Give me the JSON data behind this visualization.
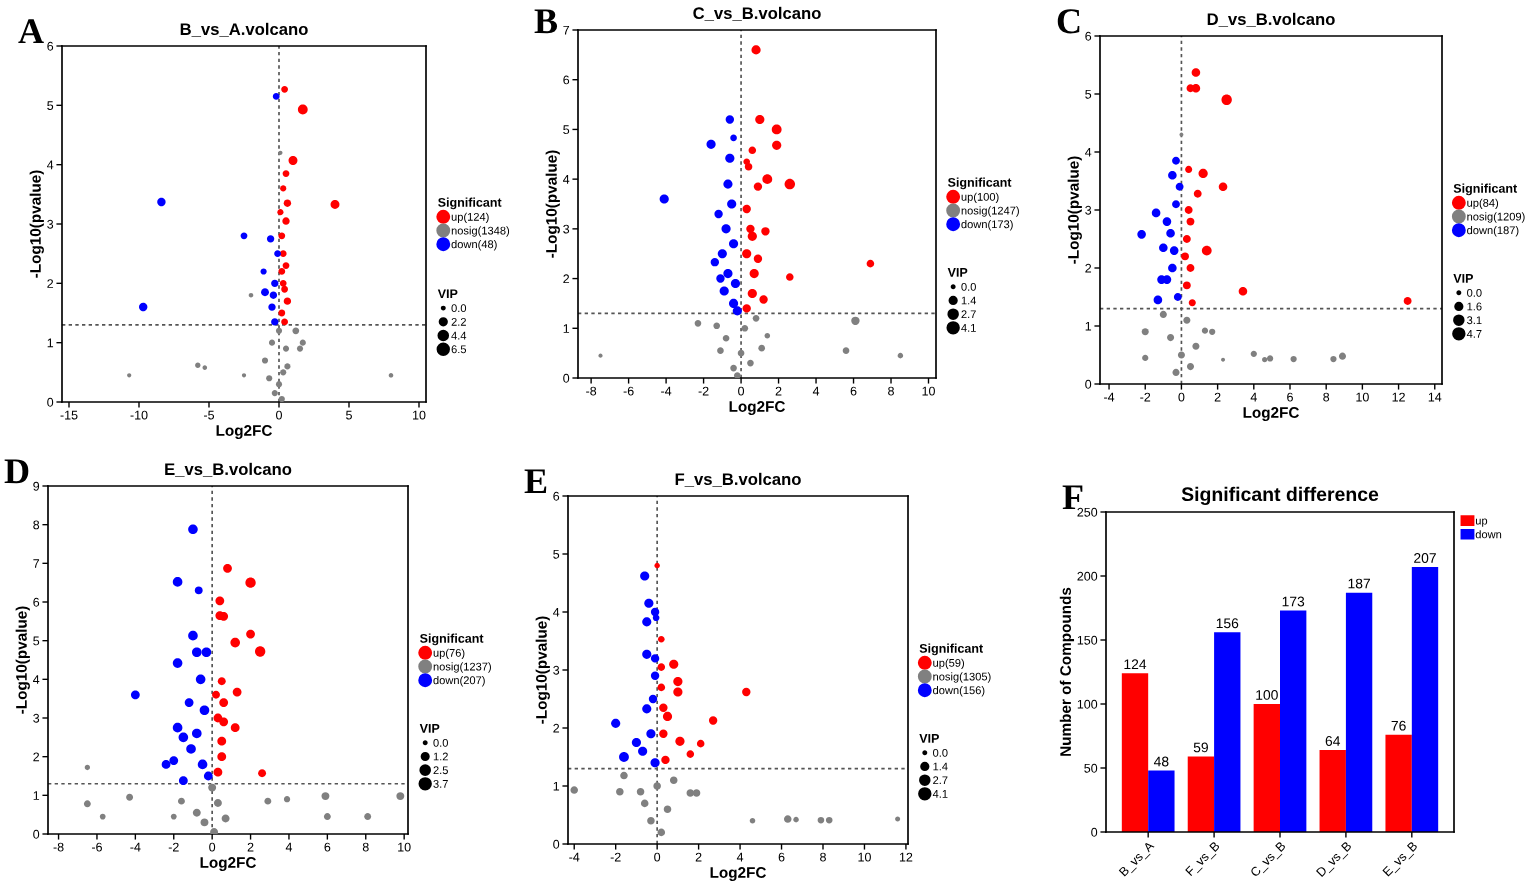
{
  "chart_data": [
    {
      "type": "bubble",
      "title": "B_vs_A.volcano",
      "xlabel": "Log2FC",
      "ylabel": "-Log10(pvalue)",
      "legend_title": "Significant",
      "annotations": [
        "A",
        "VIP"
      ],
      "legend": "right",
      "xlim": [
        -15.5,
        10.5
      ],
      "xticks": [
        -15,
        -10,
        -5,
        0,
        5,
        10
      ],
      "ylim": [
        0,
        6
      ],
      "yticks": [
        0,
        1,
        2,
        3,
        4,
        5,
        6
      ],
      "ref_lines": [
        {
          "axis": "y",
          "value": 1.3,
          "line_style": "dotted"
        },
        {
          "axis": "x",
          "value": 0,
          "line_style": "dotted"
        }
      ],
      "size_legend": [
        {
          "value": 0,
          "label": "0.0"
        },
        2.2,
        4.4,
        6.5
      ],
      "series": [
        {
          "name": "up(124)",
          "color": "#ff0000",
          "x": [
            0.4,
            1.7,
            1.0,
            0.5,
            4.0,
            0.6,
            0.3,
            0.5,
            0.2,
            0.3,
            0.5,
            0.3,
            0.6,
            0.2,
            0.4,
            0.1,
            0.2,
            0.4
          ],
          "values": [
            5.27,
            4.93,
            4.07,
            3.85,
            3.33,
            3.35,
            3.6,
            3.05,
            2.8,
            2.5,
            2.3,
            2.0,
            1.7,
            1.5,
            1.35,
            3.2,
            2.2,
            1.9
          ],
          "sizes": [
            2.5,
            5.5,
            4.5,
            2.5,
            4.5,
            3,
            2,
            3,
            2.5,
            2.5,
            2.5,
            2.5,
            3,
            2.5,
            2.5,
            2,
            2.5,
            2.5
          ]
        },
        {
          "name": "nosig(1348)",
          "color": "#808080",
          "x": [
            -10.7,
            -5.8,
            -5.3,
            -2.5,
            8,
            -2,
            0.1,
            0,
            -0.5,
            0.5,
            1.5,
            -1,
            0.3,
            0,
            -0.3,
            1.2,
            0.6,
            -0.7,
            0.2,
            1.7
          ],
          "values": [
            0.45,
            0.62,
            0.58,
            0.45,
            0.45,
            1.8,
            4.2,
            1.2,
            1.0,
            0.9,
            0.9,
            0.7,
            0.5,
            0.3,
            0.15,
            1.2,
            0.6,
            0.4,
            0.05,
            1.0
          ],
          "sizes": [
            0.8,
            1.5,
            1,
            0.8,
            1,
            1,
            0.8,
            2,
            2,
            2,
            2,
            2,
            2,
            2,
            2,
            2.5,
            2,
            2,
            2,
            2
          ]
        },
        {
          "name": "down(48)",
          "color": "#0000ff",
          "x": [
            -0.2,
            -8.4,
            -2.5,
            -0.6,
            -9.7,
            -1.1,
            -1.0,
            -0.3,
            -0.5,
            -0.3,
            -0.1,
            -0.4
          ],
          "values": [
            5.15,
            3.37,
            2.8,
            2.75,
            1.6,
            2.2,
            1.85,
            2.0,
            1.6,
            1.35,
            2.5,
            1.8
          ],
          "sizes": [
            2.5,
            4,
            2.5,
            3,
            4,
            2,
            3.5,
            3,
            3,
            3,
            2.5,
            3
          ]
        }
      ]
    },
    {
      "type": "bubble",
      "title": "C_vs_B.volcano",
      "xlabel": "Log2FC",
      "ylabel": "-Log10(pvalue)",
      "legend_title": "Significant",
      "annotations": [
        "B",
        "VIP"
      ],
      "legend": "right",
      "xlim": [
        -8.7,
        10.4
      ],
      "xticks": [
        -8,
        -6,
        -4,
        -2,
        0,
        2,
        4,
        6,
        8,
        10
      ],
      "ylim": [
        0,
        7
      ],
      "yticks": [
        0,
        1,
        2,
        3,
        4,
        5,
        6,
        7
      ],
      "ref_lines": [
        {
          "axis": "y",
          "value": 1.3,
          "line_style": "dotted"
        },
        {
          "axis": "x",
          "value": 0,
          "line_style": "dotted"
        }
      ],
      "size_legend": [
        {
          "value": 0,
          "label": "0.0"
        },
        1.4,
        2.7,
        4.1
      ],
      "series": [
        {
          "name": "up(100)",
          "color": "#ff0000",
          "x": [
            0.8,
            1.0,
            1.9,
            1.9,
            2.6,
            1.4,
            0.6,
            0.4,
            0.3,
            0.9,
            0.3,
            0.5,
            1.3,
            0.6,
            6.9,
            2.6,
            1.2,
            0.7,
            0.3,
            0.6,
            0.3,
            0.9
          ],
          "values": [
            6.6,
            5.2,
            5.0,
            4.68,
            3.9,
            4.0,
            4.58,
            4.25,
            4.35,
            3.85,
            3.4,
            3.0,
            2.95,
            2.85,
            2.3,
            2.03,
            1.58,
            2.1,
            2.5,
            1.7,
            1.4,
            2.4
          ],
          "sizes": [
            3,
            3,
            3.5,
            3,
            4,
            3.5,
            2,
            2,
            1.5,
            2.5,
            2.5,
            2.5,
            2.5,
            3,
            2,
            2,
            2.5,
            3,
            3,
            3,
            2.5,
            2.5
          ]
        },
        {
          "name": "nosig(1247)",
          "color": "#808080",
          "x": [
            -7.5,
            -2.3,
            -1.3,
            8.5,
            5.6,
            6.1,
            1.4,
            0.8,
            -0.8,
            0,
            0.5,
            -0.4,
            1.1,
            -1.1,
            0.2,
            -0.2
          ],
          "values": [
            0.45,
            1.1,
            1.05,
            0.45,
            0.55,
            1.15,
            0.85,
            1.2,
            0.8,
            0.5,
            0.3,
            0.2,
            0.6,
            0.55,
            1.0,
            0.05
          ],
          "sizes": [
            0.5,
            1.5,
            1.5,
            1,
            1.5,
            2.5,
            1,
            1.5,
            1.5,
            1.5,
            1.5,
            1.5,
            1.5,
            1.5,
            1.5,
            1.5
          ]
        },
        {
          "name": "down(173)",
          "color": "#0000ff",
          "x": [
            -0.6,
            -1.6,
            -0.4,
            -0.6,
            -4.1,
            -0.7,
            -0.5,
            -1.2,
            -0.8,
            -1.4,
            -0.4,
            -1.0,
            -0.7,
            -0.3,
            -0.9,
            -0.4,
            -0.2,
            -1.1
          ],
          "values": [
            5.2,
            4.7,
            4.83,
            4.42,
            3.6,
            3.9,
            3.5,
            3.3,
            3.0,
            2.33,
            2.7,
            2.5,
            2.1,
            1.9,
            1.75,
            1.5,
            1.35,
            2.0
          ],
          "sizes": [
            2.5,
            3,
            1.5,
            3,
            3,
            3,
            3,
            2.5,
            3,
            2.5,
            3,
            3,
            3,
            3,
            3,
            3,
            3,
            2.5
          ]
        }
      ]
    },
    {
      "type": "bubble",
      "title": "D_vs_B.volcano",
      "xlabel": "Log2FC",
      "ylabel": "-Log10(pvalue)",
      "legend_title": "Significant",
      "annotations": [
        "C",
        "VIP"
      ],
      "legend": "right",
      "xlim": [
        -4.5,
        14.4
      ],
      "xticks": [
        -4,
        -2,
        0,
        2,
        4,
        6,
        8,
        10,
        12,
        14
      ],
      "ylim": [
        0,
        6
      ],
      "yticks": [
        0,
        1,
        2,
        3,
        4,
        5,
        6
      ],
      "ref_lines": [
        {
          "axis": "y",
          "value": 1.3,
          "line_style": "dotted"
        },
        {
          "axis": "x",
          "value": 0,
          "line_style": "dotted"
        }
      ],
      "size_legend": [
        {
          "value": 0,
          "label": "0.0"
        },
        1.6,
        3.1,
        4.7
      ],
      "series": [
        {
          "name": "up(84)",
          "color": "#ff0000",
          "x": [
            0.8,
            0.5,
            0.8,
            2.5,
            1.2,
            2.3,
            0.9,
            0.4,
            0.4,
            1.4,
            3.4,
            12.5,
            0.3,
            0.5,
            0.3,
            0.6,
            0.2,
            0.5
          ],
          "values": [
            5.37,
            5.1,
            5.1,
            4.9,
            3.63,
            3.4,
            3.28,
            3.7,
            3.0,
            2.3,
            1.6,
            1.43,
            2.5,
            2.0,
            1.7,
            1.4,
            2.2,
            2.8
          ],
          "sizes": [
            3,
            2.5,
            3,
            4.5,
            3.5,
            3,
            2.5,
            2,
            2.5,
            4,
            3,
            2.5,
            2.5,
            2.5,
            2.5,
            2,
            2.5,
            2.5
          ]
        },
        {
          "name": "nosig(1209)",
          "color": "#808080",
          "x": [
            0,
            -2.0,
            -2.0,
            2.3,
            4.0,
            4.6,
            4.9,
            6.2,
            8.4,
            8.9,
            1.3,
            1.7,
            -0.6,
            0.3,
            0,
            0.5,
            -0.3,
            0.8,
            -1
          ],
          "values": [
            4.3,
            0.9,
            0.45,
            0.42,
            0.52,
            0.42,
            0.44,
            0.43,
            0.43,
            0.48,
            0.92,
            0.9,
            0.8,
            1.1,
            0.5,
            0.3,
            0.2,
            0.65,
            1.2
          ],
          "sizes": [
            0.5,
            2,
            1.5,
            0.5,
            1.5,
            1,
            1.5,
            1.5,
            1.5,
            2,
            1.5,
            1.5,
            2,
            2,
            2,
            2,
            2,
            2,
            2
          ]
        },
        {
          "name": "down(187)",
          "color": "#0000ff",
          "x": [
            -0.3,
            -0.5,
            -2.2,
            -1.4,
            -0.8,
            -1.0,
            -0.3,
            -0.5,
            -0.8,
            -1.3,
            -0.2,
            -0.6,
            -0.4,
            -1.1,
            -0.1
          ],
          "values": [
            3.85,
            3.6,
            2.58,
            2.95,
            2.8,
            2.35,
            3.1,
            2.0,
            1.8,
            1.45,
            1.5,
            2.6,
            2.3,
            1.8,
            3.4
          ],
          "sizes": [
            2.5,
            3,
            3,
            3,
            3,
            3,
            2.5,
            3,
            3,
            3,
            2.5,
            3,
            3,
            3,
            2.5
          ]
        }
      ]
    },
    {
      "type": "bubble",
      "title": "E_vs_B.volcano",
      "xlabel": "Log2FC",
      "ylabel": "-Log10(pvalue)",
      "legend_title": "Significant",
      "annotations": [
        "D",
        "VIP"
      ],
      "legend": "right",
      "xlim": [
        -8.55,
        10.2
      ],
      "xticks": [
        -8,
        -6,
        -4,
        -2,
        0,
        2,
        4,
        6,
        8,
        10
      ],
      "ylim": [
        0,
        9
      ],
      "yticks": [
        0,
        1,
        2,
        3,
        4,
        5,
        6,
        7,
        8,
        9
      ],
      "ref_lines": [
        {
          "axis": "y",
          "value": 1.3,
          "line_style": "dotted"
        },
        {
          "axis": "x",
          "value": 0,
          "line_style": "dotted"
        }
      ],
      "size_legend": [
        {
          "value": 0,
          "label": "0.0"
        },
        1.2,
        2.5,
        3.7
      ],
      "series": [
        {
          "name": "up(76)",
          "color": "#ff0000",
          "x": [
            0.8,
            2.0,
            0.4,
            0.4,
            0.6,
            2.0,
            1.2,
            2.5,
            0.5,
            1.3,
            0.6,
            0.3,
            1.2,
            0.5,
            2.6,
            0.5,
            0.3,
            0.6,
            0.2
          ],
          "values": [
            6.87,
            6.5,
            6.03,
            5.65,
            5.63,
            5.17,
            4.95,
            4.72,
            3.95,
            3.67,
            3.4,
            3.0,
            2.75,
            2.4,
            1.57,
            2.0,
            1.6,
            2.9,
            3.6
          ],
          "sizes": [
            2.5,
            3.5,
            2.5,
            2.5,
            2.5,
            2.5,
            3,
            3.5,
            2,
            2.5,
            2.5,
            2.5,
            2.5,
            2.5,
            2,
            2.5,
            2.5,
            2.5,
            2
          ]
        },
        {
          "name": "nosig(1237)",
          "color": "#808080",
          "x": [
            -6.5,
            -6.5,
            -5.7,
            -4.3,
            -2.0,
            -1.6,
            2.9,
            3.9,
            5.9,
            6.0,
            8.1,
            9.8,
            0,
            0.7,
            -0.4,
            0.3,
            -0.8,
            0.1
          ],
          "values": [
            1.72,
            0.78,
            0.45,
            0.95,
            0.45,
            0.85,
            0.85,
            0.9,
            0.98,
            0.45,
            0.45,
            0.98,
            1.2,
            0.4,
            0.3,
            0.8,
            0.55,
            0.05
          ],
          "sizes": [
            0.8,
            1.5,
            1,
            1.5,
            1,
            1.5,
            1.5,
            1.2,
            2,
            1.5,
            1.5,
            2,
            2,
            2,
            2,
            2,
            2,
            2
          ]
        },
        {
          "name": "down(207)",
          "color": "#0000ff",
          "x": [
            -1.0,
            -1.8,
            -0.7,
            -1.0,
            -0.8,
            -1.8,
            -4.0,
            -0.3,
            -0.6,
            -1.8,
            -1.2,
            -2.4,
            -2.0,
            -1.5,
            -0.8,
            -1.1,
            -0.4,
            -0.2,
            -1.5,
            -0.5
          ],
          "values": [
            7.88,
            6.52,
            6.3,
            5.13,
            4.7,
            4.42,
            3.6,
            4.7,
            4.0,
            2.75,
            3.4,
            1.8,
            1.9,
            1.38,
            2.6,
            2.2,
            3.2,
            1.5,
            2.5,
            1.8
          ],
          "sizes": [
            3,
            3,
            2,
            3,
            3,
            3,
            2.5,
            3,
            3,
            3,
            2.5,
            2.5,
            2.5,
            2.5,
            3,
            3,
            3,
            2.5,
            3,
            3
          ]
        }
      ]
    },
    {
      "type": "bubble",
      "title": "F_vs_B.volcano",
      "xlabel": "Log2FC",
      "ylabel": "-Log10(pvalue)",
      "legend_title": "Significant",
      "annotations": [
        "E",
        "VIP"
      ],
      "legend": "right",
      "xlim": [
        -4.3,
        12.1
      ],
      "xticks": [
        -4,
        -2,
        0,
        2,
        4,
        6,
        8,
        10,
        12
      ],
      "ylim": [
        0,
        6
      ],
      "yticks": [
        0,
        1,
        2,
        3,
        4,
        5,
        6
      ],
      "ref_lines": [
        {
          "axis": "y",
          "value": 1.3,
          "line_style": "dotted"
        },
        {
          "axis": "x",
          "value": 0,
          "line_style": "dotted"
        }
      ],
      "size_legend": [
        {
          "value": 0,
          "label": "0.0"
        },
        1.4,
        2.7,
        4.1
      ],
      "series": [
        {
          "name": "up(59)",
          "color": "#ff0000",
          "x": [
            0,
            0.2,
            0.8,
            1.0,
            1.0,
            4.3,
            2.7,
            0.5,
            1.1,
            2.1,
            1.6,
            0.2,
            0.3,
            0.3,
            0.4,
            0.2
          ],
          "values": [
            4.8,
            3.53,
            3.1,
            2.8,
            2.62,
            2.62,
            2.13,
            2.2,
            1.77,
            1.73,
            1.55,
            3.05,
            2.35,
            1.9,
            1.45,
            2.7
          ],
          "sizes": [
            1,
            1.5,
            3,
            3,
            3,
            2.5,
            2.5,
            3,
            3,
            2,
            2,
            2,
            2.5,
            2.5,
            2.5,
            2
          ]
        },
        {
          "name": "nosig(1305)",
          "color": "#808080",
          "x": [
            -4.0,
            -1.6,
            -1.8,
            -0.8,
            1.6,
            1.9,
            4.6,
            6.3,
            6.7,
            7.9,
            8.3,
            11.6,
            0,
            0.5,
            -0.3,
            0.2,
            -0.6,
            0.8
          ],
          "values": [
            0.93,
            1.18,
            0.9,
            0.9,
            0.88,
            0.88,
            0.4,
            0.43,
            0.42,
            0.41,
            0.41,
            0.43,
            1.0,
            0.6,
            0.4,
            0.2,
            0.7,
            1.1
          ],
          "sizes": [
            2,
            2,
            2,
            2,
            2,
            2,
            1,
            2,
            1,
            1.5,
            1.5,
            0.8,
            2,
            2,
            2,
            2,
            2,
            2
          ]
        },
        {
          "name": "down(156)",
          "color": "#0000ff",
          "x": [
            -0.6,
            -0.4,
            -0.1,
            -0.5,
            -0.5,
            -0.1,
            -2.0,
            -1.6,
            -1.0,
            -0.5,
            -0.1,
            -0.3,
            -0.7,
            -0.2,
            -0.1,
            -0.05
          ],
          "values": [
            4.62,
            4.15,
            4.0,
            3.83,
            3.27,
            3.2,
            2.08,
            1.5,
            1.75,
            2.33,
            2.9,
            1.9,
            1.6,
            2.5,
            1.4,
            3.9
          ],
          "sizes": [
            3,
            3,
            2.5,
            3,
            3,
            2.5,
            3,
            3.5,
            3,
            3,
            2.5,
            3,
            3,
            2.5,
            3,
            1.5
          ]
        }
      ]
    },
    {
      "type": "bar",
      "title": "Significant difference",
      "ylabel": "Number of Compounds",
      "annotations": [
        "F"
      ],
      "legend": "top right",
      "data_labels": true,
      "categories": [
        "B_vs_A",
        "F_vs_B",
        "C_vs_B",
        "D_vs_B",
        "E_vs_B"
      ],
      "ylim": [
        0,
        250
      ],
      "yticks": [
        0,
        50,
        100,
        150,
        200,
        250
      ],
      "series": [
        {
          "name": "up",
          "color": "#ff0000",
          "values": [
            124,
            59,
            100,
            64,
            76
          ]
        },
        {
          "name": "down",
          "color": "#0000ff",
          "values": [
            48,
            156,
            173,
            187,
            207
          ]
        }
      ]
    }
  ]
}
